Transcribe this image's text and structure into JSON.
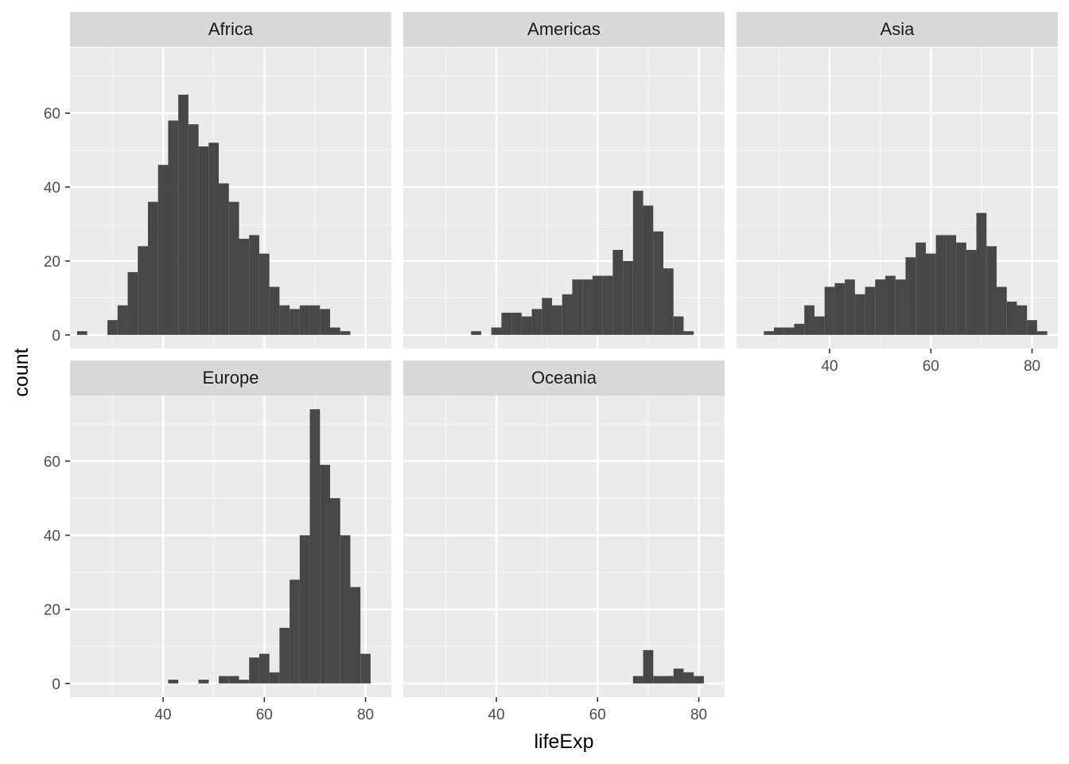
{
  "chart_data": {
    "type": "bar",
    "xlabel": "lifeExp",
    "ylabel": "count",
    "xlim": [
      21.6,
      85.1
    ],
    "ylim": [
      -3.7,
      77.7
    ],
    "x_ticks": [
      40,
      60,
      80
    ],
    "y_ticks": [
      0,
      20,
      40,
      60
    ],
    "x_tick_labels": [
      "40",
      "60",
      "80"
    ],
    "y_tick_labels": [
      "0",
      "20",
      "40",
      "60"
    ],
    "grid": true,
    "bin_width": 2,
    "panels": [
      {
        "name": "Africa",
        "bins": [
          {
            "x": 24,
            "count": 1
          },
          {
            "x": 30,
            "count": 4
          },
          {
            "x": 32,
            "count": 8
          },
          {
            "x": 34,
            "count": 17
          },
          {
            "x": 36,
            "count": 24
          },
          {
            "x": 38,
            "count": 36
          },
          {
            "x": 40,
            "count": 46
          },
          {
            "x": 42,
            "count": 58
          },
          {
            "x": 44,
            "count": 65
          },
          {
            "x": 46,
            "count": 57
          },
          {
            "x": 48,
            "count": 51
          },
          {
            "x": 50,
            "count": 52
          },
          {
            "x": 52,
            "count": 41
          },
          {
            "x": 54,
            "count": 36
          },
          {
            "x": 56,
            "count": 26
          },
          {
            "x": 58,
            "count": 27
          },
          {
            "x": 60,
            "count": 22
          },
          {
            "x": 62,
            "count": 13
          },
          {
            "x": 64,
            "count": 8
          },
          {
            "x": 66,
            "count": 7
          },
          {
            "x": 68,
            "count": 8
          },
          {
            "x": 70,
            "count": 8
          },
          {
            "x": 72,
            "count": 7
          },
          {
            "x": 74,
            "count": 2
          },
          {
            "x": 76,
            "count": 1
          }
        ]
      },
      {
        "name": "Americas",
        "bins": [
          {
            "x": 36,
            "count": 1
          },
          {
            "x": 40,
            "count": 2
          },
          {
            "x": 42,
            "count": 6
          },
          {
            "x": 44,
            "count": 6
          },
          {
            "x": 46,
            "count": 5
          },
          {
            "x": 48,
            "count": 7
          },
          {
            "x": 50,
            "count": 10
          },
          {
            "x": 52,
            "count": 8
          },
          {
            "x": 54,
            "count": 11
          },
          {
            "x": 56,
            "count": 15
          },
          {
            "x": 58,
            "count": 15
          },
          {
            "x": 60,
            "count": 16
          },
          {
            "x": 62,
            "count": 16
          },
          {
            "x": 64,
            "count": 23
          },
          {
            "x": 66,
            "count": 20
          },
          {
            "x": 68,
            "count": 39
          },
          {
            "x": 70,
            "count": 35
          },
          {
            "x": 72,
            "count": 28
          },
          {
            "x": 74,
            "count": 18
          },
          {
            "x": 76,
            "count": 5
          },
          {
            "x": 78,
            "count": 1
          }
        ]
      },
      {
        "name": "Asia",
        "bins": [
          {
            "x": 28,
            "count": 1
          },
          {
            "x": 30,
            "count": 2
          },
          {
            "x": 32,
            "count": 2
          },
          {
            "x": 34,
            "count": 3
          },
          {
            "x": 36,
            "count": 8
          },
          {
            "x": 38,
            "count": 5
          },
          {
            "x": 40,
            "count": 13
          },
          {
            "x": 42,
            "count": 14
          },
          {
            "x": 44,
            "count": 15
          },
          {
            "x": 46,
            "count": 11
          },
          {
            "x": 48,
            "count": 13
          },
          {
            "x": 50,
            "count": 15
          },
          {
            "x": 52,
            "count": 16
          },
          {
            "x": 54,
            "count": 15
          },
          {
            "x": 56,
            "count": 21
          },
          {
            "x": 58,
            "count": 25
          },
          {
            "x": 60,
            "count": 22
          },
          {
            "x": 62,
            "count": 27
          },
          {
            "x": 64,
            "count": 27
          },
          {
            "x": 66,
            "count": 25
          },
          {
            "x": 68,
            "count": 23
          },
          {
            "x": 70,
            "count": 33
          },
          {
            "x": 72,
            "count": 24
          },
          {
            "x": 74,
            "count": 13
          },
          {
            "x": 76,
            "count": 9
          },
          {
            "x": 78,
            "count": 8
          },
          {
            "x": 80,
            "count": 4
          },
          {
            "x": 82,
            "count": 1
          }
        ]
      },
      {
        "name": "Europe",
        "bins": [
          {
            "x": 42,
            "count": 1
          },
          {
            "x": 48,
            "count": 1
          },
          {
            "x": 52,
            "count": 2
          },
          {
            "x": 54,
            "count": 2
          },
          {
            "x": 56,
            "count": 1
          },
          {
            "x": 58,
            "count": 7
          },
          {
            "x": 60,
            "count": 8
          },
          {
            "x": 62,
            "count": 3
          },
          {
            "x": 64,
            "count": 15
          },
          {
            "x": 66,
            "count": 28
          },
          {
            "x": 68,
            "count": 40
          },
          {
            "x": 70,
            "count": 74
          },
          {
            "x": 72,
            "count": 59
          },
          {
            "x": 74,
            "count": 50
          },
          {
            "x": 76,
            "count": 40
          },
          {
            "x": 78,
            "count": 26
          },
          {
            "x": 80,
            "count": 8
          }
        ]
      },
      {
        "name": "Oceania",
        "bins": [
          {
            "x": 68,
            "count": 2
          },
          {
            "x": 70,
            "count": 9
          },
          {
            "x": 72,
            "count": 2
          },
          {
            "x": 74,
            "count": 2
          },
          {
            "x": 76,
            "count": 4
          },
          {
            "x": 78,
            "count": 3
          },
          {
            "x": 80,
            "count": 2
          }
        ]
      }
    ],
    "colors": {
      "bar": "#474747",
      "panel_background": "#ebebeb",
      "strip_background": "#d9d9d9",
      "grid_major": "#ffffff",
      "grid_minor": "#f5f5f5",
      "tick_text": "#4d4d4d",
      "tick_mark": "#333333"
    }
  }
}
